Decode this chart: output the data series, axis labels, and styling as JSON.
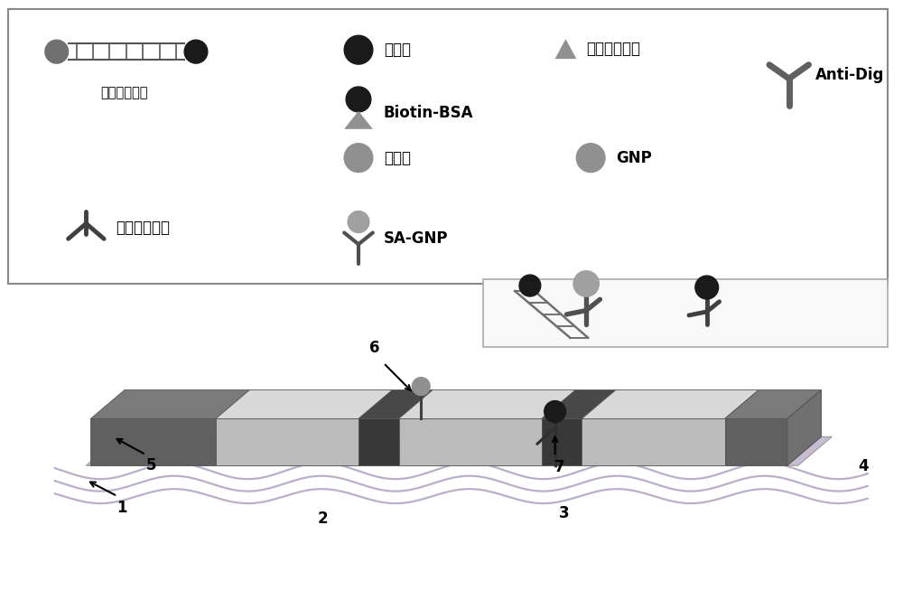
{
  "bg_color": "#ffffff",
  "labels": {
    "target_gene": "靶基因扩增物",
    "biotin": "生物素",
    "bsa": "牛血清白蛋白",
    "biotin_bsa": "Biotin-BSA",
    "digoxin": "地高辛",
    "gnp": "GNP",
    "streptavidin": "链霊素亲和素",
    "sa_gnp": "SA-GNP",
    "anti_dig": "Anti-Dig"
  },
  "numbers": [
    "1",
    "2",
    "3",
    "4",
    "5",
    "6",
    "7"
  ],
  "dark_gray": "#333333",
  "mid_gray": "#808080",
  "light_gray": "#b0b0b0",
  "lighter_gray": "#d0d0d0",
  "black": "#1a1a1a",
  "strip_dark": "#5a5a5a",
  "strip_light": "#c8c8c8",
  "box_border": "#444444",
  "membrane_color": "#b0a0b8"
}
